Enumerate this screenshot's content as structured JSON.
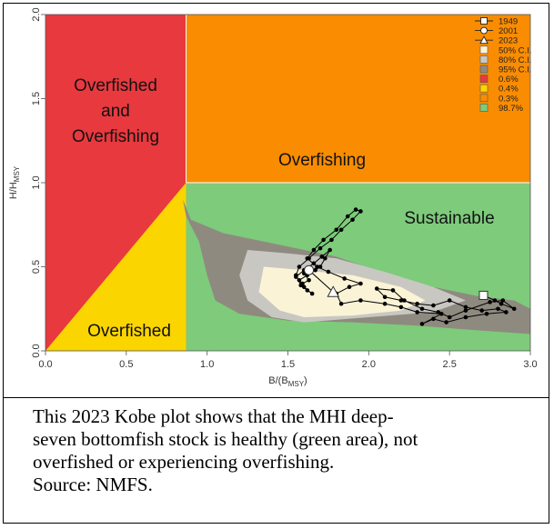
{
  "chart_data": {
    "type": "scatter",
    "title": "",
    "xlabel": "B/(B",
    "xlabel_sub": "MSY",
    "xlabel_end": ")",
    "ylabel": "H/H",
    "ylabel_sub": "MSY",
    "xlim": [
      0,
      3.0
    ],
    "ylim": [
      0,
      2.0
    ],
    "x_ticks": [
      "0.0",
      "0.5",
      "1.0",
      "1.5",
      "2.0",
      "2.5",
      "3.0"
    ],
    "y_ticks": [
      "0.0",
      "0.5",
      "1.0",
      "1.5",
      "2.0"
    ],
    "bmsy_threshold": 0.87,
    "hmsy_threshold": 1.0,
    "regions": [
      {
        "name": "Overfished and Overfishing",
        "lines": [
          "Overfished",
          "and",
          "Overfishing"
        ],
        "color": "#E8393F"
      },
      {
        "name": "Overfishing",
        "lines": [
          "Overfishing"
        ],
        "color": "#F98C00"
      },
      {
        "name": "Overfished",
        "lines": [
          "Overfished"
        ],
        "color": "#FBD500"
      },
      {
        "name": "Sustainable",
        "lines": [
          "Sustainable"
        ],
        "color": "#7DCB7B"
      }
    ],
    "legend": [
      {
        "label": "1949",
        "kind": "square-line"
      },
      {
        "label": "2001",
        "kind": "circle-line"
      },
      {
        "label": "2023",
        "kind": "triangle-line"
      },
      {
        "label": "50% C.I.",
        "kind": "swatch",
        "color": "#FBF3D6"
      },
      {
        "label": "80% C.I.",
        "kind": "swatch",
        "color": "#C9C7C2"
      },
      {
        "label": "95% C.I.",
        "kind": "swatch",
        "color": "#8F8A80"
      },
      {
        "label": "0.6%",
        "kind": "swatch",
        "color": "#E8393F"
      },
      {
        "label": "0.4%",
        "kind": "swatch",
        "color": "#FBD500"
      },
      {
        "label": "0.3%",
        "kind": "swatch",
        "color": "#F98C00"
      },
      {
        "label": "98.7%",
        "kind": "swatch",
        "color": "#7DCB7B"
      }
    ],
    "confidence_regions": {
      "ci95": [
        [
          0.85,
          0.9
        ],
        [
          0.9,
          0.78
        ],
        [
          1.1,
          0.7
        ],
        [
          1.3,
          0.66
        ],
        [
          1.5,
          0.62
        ],
        [
          1.8,
          0.56
        ],
        [
          2.1,
          0.46
        ],
        [
          2.4,
          0.38
        ],
        [
          2.7,
          0.32
        ],
        [
          2.9,
          0.3
        ],
        [
          3.0,
          0.25
        ],
        [
          3.0,
          0.1
        ],
        [
          2.7,
          0.12
        ],
        [
          2.3,
          0.15
        ],
        [
          1.9,
          0.17
        ],
        [
          1.5,
          0.18
        ],
        [
          1.2,
          0.22
        ],
        [
          1.05,
          0.3
        ],
        [
          1.0,
          0.45
        ],
        [
          0.95,
          0.65
        ],
        [
          0.87,
          0.8
        ]
      ],
      "ci80": [
        [
          1.25,
          0.6
        ],
        [
          1.5,
          0.58
        ],
        [
          1.8,
          0.55
        ],
        [
          2.1,
          0.47
        ],
        [
          2.4,
          0.38
        ],
        [
          2.6,
          0.3
        ],
        [
          2.4,
          0.23
        ],
        [
          2.0,
          0.2
        ],
        [
          1.6,
          0.17
        ],
        [
          1.4,
          0.2
        ],
        [
          1.25,
          0.3
        ],
        [
          1.2,
          0.45
        ]
      ],
      "ci50": [
        [
          1.35,
          0.5
        ],
        [
          1.6,
          0.48
        ],
        [
          1.9,
          0.45
        ],
        [
          2.2,
          0.38
        ],
        [
          2.35,
          0.3
        ],
        [
          2.2,
          0.24
        ],
        [
          1.9,
          0.21
        ],
        [
          1.6,
          0.2
        ],
        [
          1.45,
          0.24
        ],
        [
          1.32,
          0.35
        ]
      ]
    },
    "trajectory": {
      "points": [
        [
          2.71,
          0.33
        ],
        [
          2.78,
          0.3
        ],
        [
          2.82,
          0.28
        ],
        [
          2.9,
          0.25
        ],
        [
          2.83,
          0.3
        ],
        [
          2.75,
          0.29
        ],
        [
          2.6,
          0.24
        ],
        [
          2.5,
          0.2
        ],
        [
          2.43,
          0.23
        ],
        [
          2.33,
          0.25
        ],
        [
          2.22,
          0.3
        ],
        [
          2.15,
          0.36
        ],
        [
          2.05,
          0.37
        ],
        [
          2.1,
          0.32
        ],
        [
          2.2,
          0.3
        ],
        [
          2.3,
          0.28
        ],
        [
          2.4,
          0.27
        ],
        [
          2.5,
          0.3
        ],
        [
          2.6,
          0.26
        ],
        [
          2.7,
          0.24
        ],
        [
          2.8,
          0.25
        ],
        [
          2.85,
          0.23
        ],
        [
          2.73,
          0.22
        ],
        [
          2.6,
          0.2
        ],
        [
          2.48,
          0.17
        ],
        [
          2.4,
          0.19
        ],
        [
          2.33,
          0.16
        ],
        [
          2.45,
          0.22
        ],
        [
          2.3,
          0.23
        ],
        [
          2.2,
          0.26
        ],
        [
          2.1,
          0.28
        ],
        [
          1.95,
          0.3
        ],
        [
          1.83,
          0.28
        ],
        [
          1.8,
          0.34
        ],
        [
          1.88,
          0.38
        ],
        [
          1.95,
          0.4
        ],
        [
          1.85,
          0.43
        ],
        [
          1.75,
          0.47
        ],
        [
          1.68,
          0.5
        ],
        [
          1.62,
          0.55
        ],
        [
          1.66,
          0.6
        ],
        [
          1.72,
          0.66
        ],
        [
          1.8,
          0.72
        ],
        [
          1.87,
          0.8
        ],
        [
          1.92,
          0.84
        ],
        [
          1.95,
          0.83
        ],
        [
          1.9,
          0.78
        ],
        [
          1.83,
          0.72
        ],
        [
          1.77,
          0.66
        ],
        [
          1.7,
          0.61
        ],
        [
          1.63,
          0.55
        ],
        [
          1.57,
          0.5
        ],
        [
          1.55,
          0.45
        ],
        [
          1.58,
          0.39
        ],
        [
          1.62,
          0.36
        ],
        [
          1.65,
          0.34
        ],
        [
          1.6,
          0.38
        ],
        [
          1.57,
          0.42
        ],
        [
          1.62,
          0.45
        ],
        [
          1.67,
          0.48
        ],
        [
          1.7,
          0.5
        ],
        [
          1.73,
          0.55
        ],
        [
          1.76,
          0.6
        ],
        [
          1.71,
          0.56
        ],
        [
          1.66,
          0.52
        ],
        [
          1.6,
          0.48
        ],
        [
          1.55,
          0.44
        ],
        [
          1.59,
          0.4
        ],
        [
          1.63,
          0.42
        ],
        [
          1.6,
          0.46
        ],
        [
          1.63,
          0.48
        ],
        [
          1.78,
          0.35
        ]
      ],
      "start": {
        "label": "1949",
        "x": 2.71,
        "y": 0.33
      },
      "mid": {
        "label": "2001",
        "x": 1.63,
        "y": 0.48
      },
      "end": {
        "label": "2023",
        "x": 1.78,
        "y": 0.35
      }
    }
  },
  "caption": {
    "lines": [
      "This 2023 Kobe plot shows that the MHI deep-",
      "seven bottomfish stock is healthy (green area), not",
      "overfished or experiencing overfishing.",
      "Source: NMFS."
    ]
  }
}
